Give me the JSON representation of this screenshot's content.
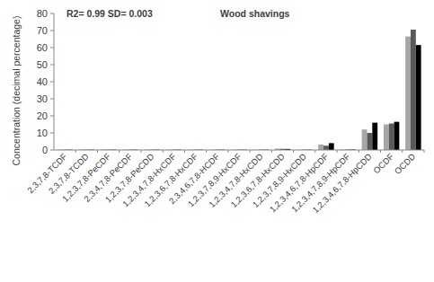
{
  "chart_data": {
    "type": "bar",
    "title": "Wood shavings",
    "annotations": [
      "R2= 0.99 SD= 0.003"
    ],
    "y_label": "Concentration (decimal percentage)",
    "categories": [
      "2,3,7,8-TCDF",
      "2,3,7,8-TCDD",
      "1,2,3,7,8-PeCDF",
      "2,3,4,7,8-PeCDF",
      "1,2,3,7,8-PeCDD",
      "1,2,3,4,7,8-HxCDF",
      "1,2,3,6,7,8-HxCDF",
      "2,3,4,6,7,8-HCDF",
      "1,2,3,7,8,9-HxCDF",
      "1,2,3,4,7,8-HxCDD",
      "1,2,3,6,7,8-HxCDD",
      "1,2,3,7,8,9-HxCDD",
      "1,2,3,4,6,7,8-HpCDF",
      "1,2,3,4,7,8,9-HpCDF",
      "1,2,3,4,6,7,8-HpCDD",
      "OCDF",
      "OCDD"
    ],
    "series": [
      {
        "color": "#a6a6a6",
        "values": [
          0.2,
          0.2,
          0.2,
          0.2,
          0.2,
          0.2,
          0.2,
          0.2,
          0.2,
          0.2,
          0.8,
          0.2,
          3.2,
          0.3,
          12,
          15,
          66.5
        ]
      },
      {
        "color": "#595959",
        "values": [
          0.2,
          0.2,
          0.2,
          0.2,
          0.2,
          0.2,
          0.2,
          0.2,
          0.2,
          0.2,
          0.7,
          0.2,
          2.5,
          0.3,
          10,
          15.5,
          70.5
        ]
      },
      {
        "color": "#000000",
        "values": [
          0.2,
          0.2,
          0.2,
          0.2,
          0.2,
          0.2,
          0.2,
          0.2,
          0.2,
          0.2,
          0.6,
          0.2,
          4,
          0.3,
          16,
          16.5,
          61.5
        ]
      }
    ],
    "ylim": [
      0,
      80
    ],
    "yticks": [
      0,
      10,
      20,
      30,
      40,
      50,
      60,
      70,
      80
    ],
    "grid": false
  }
}
